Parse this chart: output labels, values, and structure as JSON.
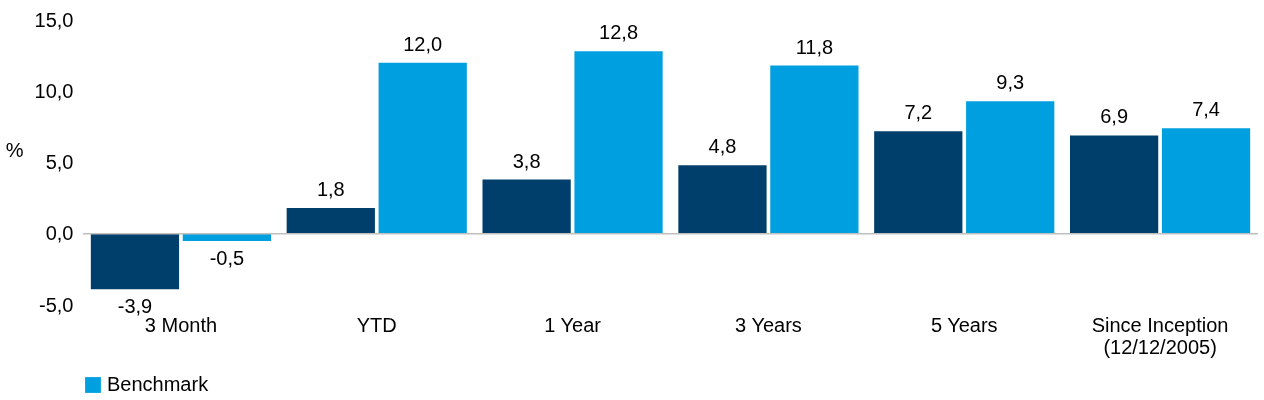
{
  "chart_data": {
    "type": "bar",
    "ylabel": "%",
    "categories": [
      "3 Month",
      "YTD",
      "1 Year",
      "3 Years",
      "5 Years",
      "Since Inception\n(12/12/2005)"
    ],
    "series": [
      {
        "color": "#003f6b",
        "values": [
          -3.9,
          1.8,
          3.8,
          4.8,
          7.2,
          6.9
        ],
        "value_labels": [
          "-3,9",
          "1,8",
          "3,8",
          "4,8",
          "7,2",
          "6,9"
        ]
      },
      {
        "name": "Benchmark",
        "color": "#009fdf",
        "values": [
          -0.5,
          12.0,
          12.8,
          11.8,
          9.3,
          7.4
        ],
        "value_labels": [
          "-0,5",
          "12,0",
          "12,8",
          "11,8",
          "9,3",
          "7,4"
        ]
      }
    ],
    "ylim": [
      -5,
      15
    ],
    "yticks": [
      {
        "value": -5,
        "label": "-5,0"
      },
      {
        "value": 0,
        "label": "0,0"
      },
      {
        "value": 5,
        "label": "5,0"
      },
      {
        "value": 10,
        "label": "10,0"
      },
      {
        "value": 15,
        "label": "15,0"
      }
    ],
    "ref_lines": [
      {
        "axis": "y",
        "value": 0,
        "color": "#bfbfbf"
      }
    ],
    "grid": false,
    "legend": "bottom"
  }
}
